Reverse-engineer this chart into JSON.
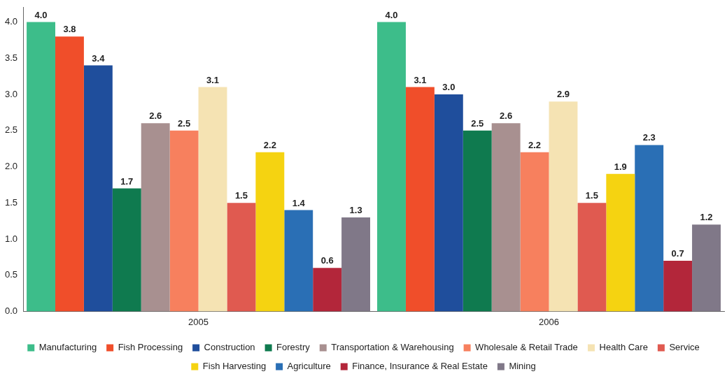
{
  "chart_data": {
    "type": "bar",
    "categories": [
      "2005",
      "2006"
    ],
    "series": [
      {
        "name": "Manufacturing",
        "color": "#3dbd8a",
        "values": [
          4.0,
          4.0
        ],
        "value_labels": [
          "4.0",
          "4.0"
        ]
      },
      {
        "name": "Fish Processing",
        "color": "#f04e2a",
        "values": [
          3.8,
          3.1
        ],
        "value_labels": [
          "3.8",
          "3.1"
        ]
      },
      {
        "name": "Construction",
        "color": "#1f4e9c",
        "values": [
          3.4,
          3.0
        ],
        "value_labels": [
          "3.4",
          "3.0"
        ]
      },
      {
        "name": "Forestry",
        "color": "#0f7a4f",
        "values": [
          1.7,
          2.5
        ],
        "value_labels": [
          "1.7",
          "2.5"
        ]
      },
      {
        "name": "Transportation & Warehousing",
        "color": "#a89090",
        "values": [
          2.6,
          2.6
        ],
        "value_labels": [
          "2.6",
          "2.6"
        ]
      },
      {
        "name": "Wholesale & Retail Trade",
        "color": "#f7805e",
        "values": [
          2.5,
          2.2
        ],
        "value_labels": [
          "2.5",
          "2.2"
        ]
      },
      {
        "name": "Health Care",
        "color": "#f5e3b3",
        "values": [
          3.1,
          2.9
        ],
        "value_labels": [
          "3.1",
          "2.9"
        ]
      },
      {
        "name": "Service",
        "color": "#e05a50",
        "values": [
          1.5,
          1.5
        ],
        "value_labels": [
          "1.5",
          "1.5"
        ]
      },
      {
        "name": "Fish Harvesting",
        "color": "#f5d311",
        "values": [
          2.2,
          1.9
        ],
        "value_labels": [
          "2.2",
          "1.9"
        ]
      },
      {
        "name": "Agriculture",
        "color": "#2a6fb5",
        "values": [
          1.4,
          2.3
        ],
        "value_labels": [
          "1.4",
          "2.3"
        ]
      },
      {
        "name": "Finance, Insurance & Real Estate",
        "color": "#b3263a",
        "values": [
          0.6,
          0.7
        ],
        "value_labels": [
          "0.6",
          "0.7"
        ]
      },
      {
        "name": "Mining",
        "color": "#807888",
        "values": [
          1.3,
          1.2
        ],
        "value_labels": [
          "1.3",
          "1.2"
        ]
      }
    ],
    "ylim": [
      0,
      4.2
    ],
    "yticks": [
      {
        "value": 0,
        "label": "0.0"
      },
      {
        "value": 0.5,
        "label": "0.5"
      },
      {
        "value": 1,
        "label": "1.0"
      },
      {
        "value": 1.5,
        "label": "1.5"
      },
      {
        "value": 2,
        "label": "2.0"
      },
      {
        "value": 2.5,
        "label": "2.5"
      },
      {
        "value": 3,
        "label": "3.0"
      },
      {
        "value": 3.5,
        "label": "3.5"
      },
      {
        "value": 4,
        "label": "4.0"
      }
    ],
    "grid": false,
    "legend": "bottom"
  }
}
